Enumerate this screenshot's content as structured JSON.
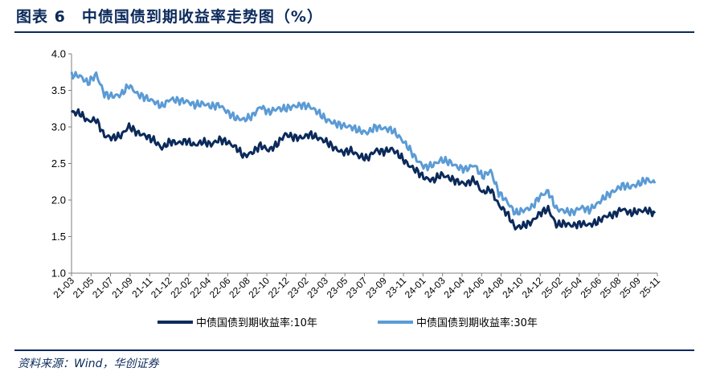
{
  "header": {
    "title": "图表 6　中债国债到期收益率走势图（%）"
  },
  "footer": {
    "source": "资料来源：Wind，华创证券"
  },
  "chart_data": {
    "type": "line",
    "title": "图表 6　中债国债到期收益率走势图（%）",
    "xlabel": "",
    "ylabel": "",
    "ylim": [
      1.0,
      4.0
    ],
    "yticks": [
      "4.0",
      "3.5",
      "3.0",
      "2.5",
      "2.0",
      "1.5",
      "1.0"
    ],
    "grid": false,
    "legend_position": "bottom",
    "x_tick_labels": [
      "21-03",
      "21-05",
      "21-07",
      "21-09",
      "21-11",
      "21-12",
      "22-02",
      "22-04",
      "22-06",
      "22-08",
      "22-10",
      "22-12",
      "23-02",
      "23-03",
      "23-05",
      "23-07",
      "23-09",
      "23-11",
      "24-01",
      "24-03",
      "24-04",
      "24-06",
      "24-08",
      "24-10",
      "24-12",
      "25-02",
      "25-04",
      "25-06",
      "25-08",
      "25-09",
      "25-11"
    ],
    "series": [
      {
        "name": "中债国债到期收益率:10年",
        "color": "#0b2a5b",
        "values": [
          3.2,
          3.19,
          3.08,
          3.1,
          2.88,
          2.85,
          2.88,
          3.01,
          2.92,
          2.88,
          2.82,
          2.71,
          2.8,
          2.78,
          2.81,
          2.75,
          2.8,
          2.76,
          2.83,
          2.79,
          2.72,
          2.6,
          2.65,
          2.75,
          2.68,
          2.76,
          2.9,
          2.86,
          2.85,
          2.9,
          2.85,
          2.8,
          2.71,
          2.65,
          2.68,
          2.6,
          2.57,
          2.68,
          2.66,
          2.7,
          2.6,
          2.48,
          2.4,
          2.3,
          2.27,
          2.35,
          2.3,
          2.25,
          2.22,
          2.28,
          2.1,
          2.15,
          1.93,
          1.82,
          1.62,
          1.65,
          1.7,
          1.82,
          1.88,
          1.66,
          1.68,
          1.65,
          1.68,
          1.66,
          1.7,
          1.78,
          1.8,
          1.88,
          1.82,
          1.85,
          1.86,
          1.82
        ]
      },
      {
        "name": "中债国债到期收益率:30年",
        "color": "#5b9bd5",
        "values": [
          3.71,
          3.7,
          3.6,
          3.72,
          3.45,
          3.42,
          3.44,
          3.57,
          3.45,
          3.4,
          3.35,
          3.28,
          3.38,
          3.36,
          3.35,
          3.3,
          3.32,
          3.28,
          3.3,
          3.2,
          3.12,
          3.1,
          3.15,
          3.28,
          3.2,
          3.25,
          3.25,
          3.28,
          3.3,
          3.28,
          3.2,
          3.1,
          3.05,
          3.02,
          3.0,
          2.95,
          2.92,
          3.0,
          2.98,
          2.96,
          2.85,
          2.72,
          2.55,
          2.45,
          2.48,
          2.55,
          2.52,
          2.45,
          2.42,
          2.48,
          2.32,
          2.4,
          2.1,
          1.98,
          1.82,
          1.86,
          1.9,
          2.05,
          2.12,
          1.88,
          1.85,
          1.83,
          1.9,
          1.86,
          1.95,
          2.05,
          2.12,
          2.2,
          2.18,
          2.22,
          2.28,
          2.23
        ]
      }
    ]
  }
}
